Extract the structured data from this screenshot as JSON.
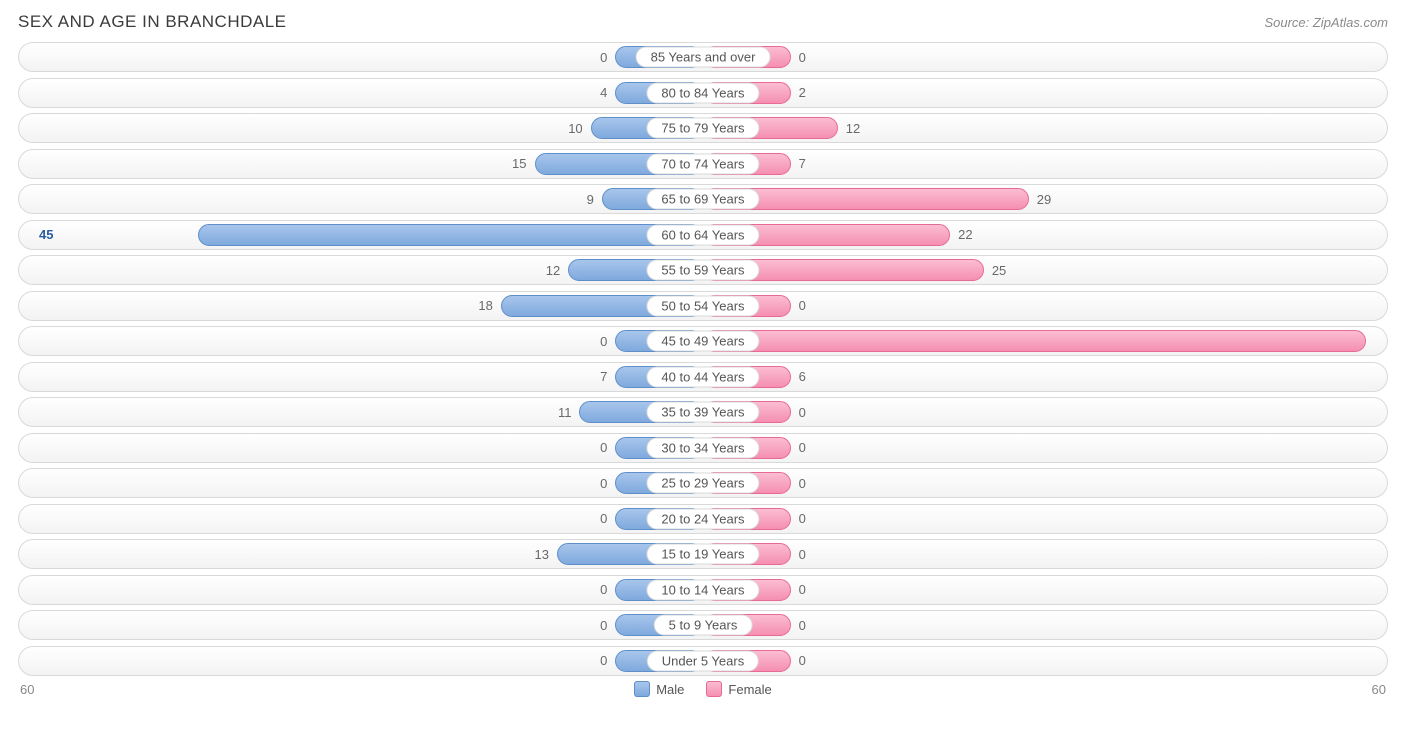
{
  "title": "SEX AND AGE IN BRANCHDALE",
  "source": "Source: ZipAtlas.com",
  "axis_max": 60,
  "min_bar_pct": 13,
  "colors": {
    "male_fill_top": "#a8c6ec",
    "male_fill_bottom": "#7fa9dd",
    "male_border": "#5f8fc9",
    "female_fill_top": "#fbbdd2",
    "female_fill_bottom": "#f58fb2",
    "female_border": "#e76a96",
    "row_border": "#d9d9d9",
    "text": "#696969",
    "title_color": "#3b3b3b"
  },
  "legend": {
    "male": "Male",
    "female": "Female"
  },
  "rows": [
    {
      "label": "85 Years and over",
      "male": 0,
      "female": 0
    },
    {
      "label": "80 to 84 Years",
      "male": 4,
      "female": 2
    },
    {
      "label": "75 to 79 Years",
      "male": 10,
      "female": 12
    },
    {
      "label": "70 to 74 Years",
      "male": 15,
      "female": 7
    },
    {
      "label": "65 to 69 Years",
      "male": 9,
      "female": 29
    },
    {
      "label": "60 to 64 Years",
      "male": 45,
      "female": 22
    },
    {
      "label": "55 to 59 Years",
      "male": 12,
      "female": 25
    },
    {
      "label": "50 to 54 Years",
      "male": 18,
      "female": 0
    },
    {
      "label": "45 to 49 Years",
      "male": 0,
      "female": 59
    },
    {
      "label": "40 to 44 Years",
      "male": 7,
      "female": 6
    },
    {
      "label": "35 to 39 Years",
      "male": 11,
      "female": 0
    },
    {
      "label": "30 to 34 Years",
      "male": 0,
      "female": 0
    },
    {
      "label": "25 to 29 Years",
      "male": 0,
      "female": 0
    },
    {
      "label": "20 to 24 Years",
      "male": 0,
      "female": 0
    },
    {
      "label": "15 to 19 Years",
      "male": 13,
      "female": 0
    },
    {
      "label": "10 to 14 Years",
      "male": 0,
      "female": 0
    },
    {
      "label": "5 to 9 Years",
      "male": 0,
      "female": 0
    },
    {
      "label": "Under 5 Years",
      "male": 0,
      "female": 0
    }
  ]
}
